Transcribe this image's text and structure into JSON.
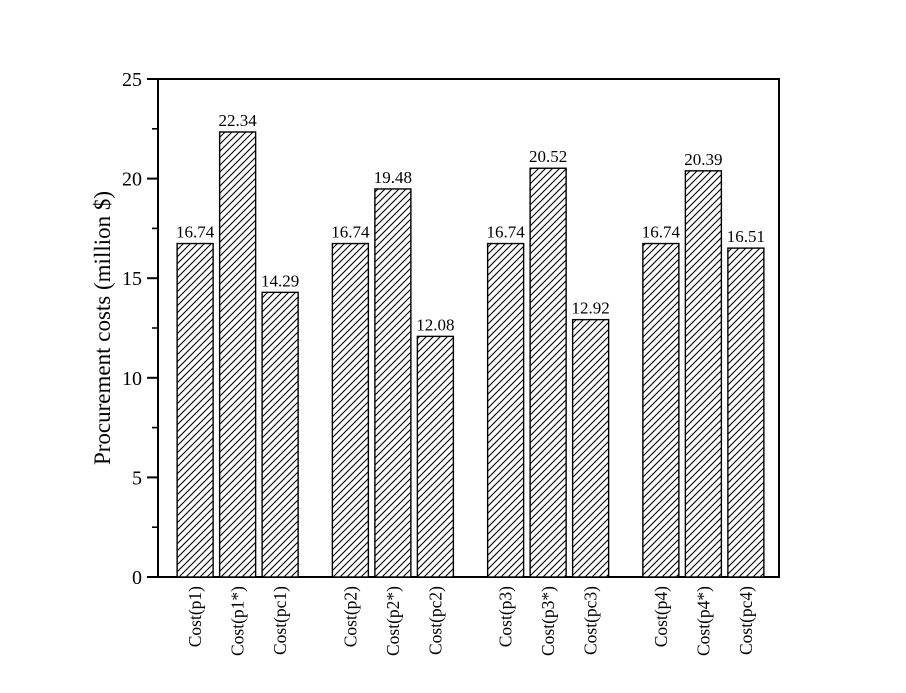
{
  "figure": {
    "background": "#ffffff",
    "ink_color": "#000000"
  },
  "chart_data": {
    "type": "bar",
    "title": "",
    "xlabel": "",
    "ylabel": "Procurement costs (million $)",
    "categories": [
      "Cost(p1)",
      "Cost(p1*)",
      "Cost(pc1)",
      "Cost(p2)",
      "Cost(p2*)",
      "Cost(pc2)",
      "Cost(p3)",
      "Cost(p3*)",
      "Cost(pc3)",
      "Cost(p4)",
      "Cost(p4*)",
      "Cost(pc4)"
    ],
    "values": [
      16.74,
      22.34,
      14.29,
      16.74,
      19.48,
      12.08,
      16.74,
      20.52,
      12.92,
      16.74,
      20.39,
      16.51
    ],
    "value_labels": [
      "16.74",
      "22.34",
      "14.29",
      "16.74",
      "19.48",
      "12.08",
      "16.74",
      "20.52",
      "12.92",
      "16.74",
      "20.39",
      "16.51"
    ],
    "groups": 4,
    "bars_per_group": 3,
    "ylim": [
      0,
      25
    ],
    "y_major_ticks": [
      0,
      5,
      10,
      15,
      20,
      25
    ],
    "y_major_tick_labels": [
      "0",
      "5",
      "10",
      "15",
      "20",
      "25"
    ],
    "y_minor_step": 2.5,
    "grid": false,
    "legend": "none",
    "bar_style": {
      "hatch": "/",
      "edge_color": "#000000",
      "face_color": "#ffffff"
    },
    "x_tick_label_rotation_deg": 90
  }
}
